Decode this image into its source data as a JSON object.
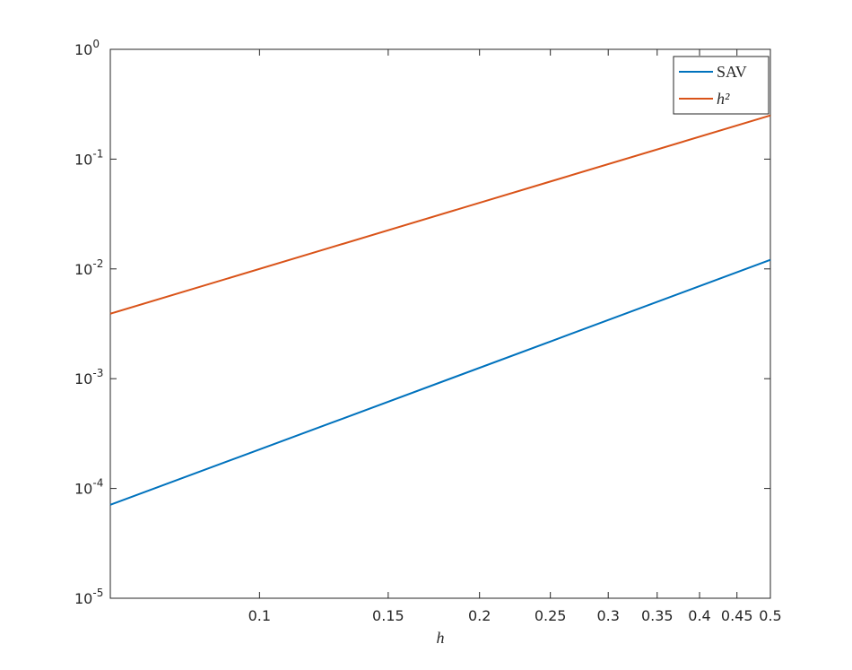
{
  "chart_data": {
    "type": "line",
    "log_x": true,
    "log_y": true,
    "x_label": "h",
    "x": [
      0.0625,
      0.125,
      0.25,
      0.5
    ],
    "series": [
      {
        "name": "SAV",
        "color": "#0072bd",
        "values": [
          7.1e-05,
          0.000393,
          0.00218,
          0.0121
        ]
      },
      {
        "name": "h²",
        "color": "#d95319",
        "values": [
          0.00390625,
          0.015625,
          0.0625,
          0.25
        ]
      }
    ],
    "xlim": [
      0.0625,
      0.5
    ],
    "xticks": [
      0.1,
      0.15,
      0.2,
      0.25,
      0.3,
      0.35,
      0.4,
      0.45,
      0.5
    ],
    "ylim": [
      1e-05,
      1
    ],
    "yticks": [
      {
        "value": 1e-05,
        "label": "10",
        "exponent": "-5"
      },
      {
        "value": 0.0001,
        "label": "10",
        "exponent": "-4"
      },
      {
        "value": 0.001,
        "label": "10",
        "exponent": "-3"
      },
      {
        "value": 0.01,
        "label": "10",
        "exponent": "-2"
      },
      {
        "value": 0.1,
        "label": "10",
        "exponent": "-1"
      },
      {
        "value": 1,
        "label": "10",
        "exponent": "0"
      }
    ],
    "grid": false,
    "legend": "top-right"
  }
}
